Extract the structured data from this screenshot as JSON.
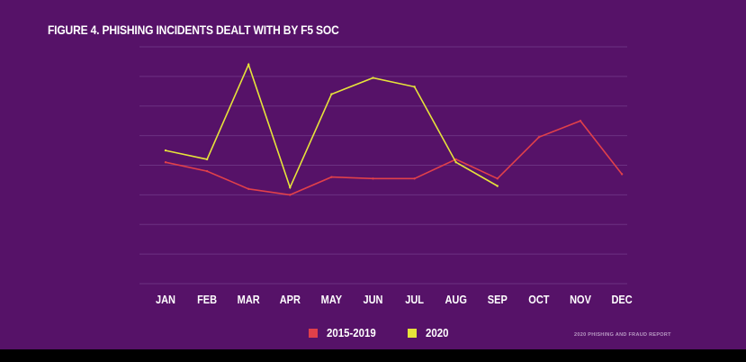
{
  "figure": {
    "title": "FIGURE 4. PHISHING INCIDENTS DEALT WITH BY F5 SOC",
    "footer_note": "2020 PHISHING AND FRAUD REPORT"
  },
  "colors": {
    "background": "#561268",
    "gridline": "#6c3182",
    "series_2015_2019": "#e0404a",
    "series_2020": "#e6e33a",
    "text": "#ffffff"
  },
  "chart_data": {
    "type": "line",
    "title": "FIGURE 4. PHISHING INCIDENTS DEALT WITH BY F5 SOC",
    "xlabel": "",
    "ylabel": "",
    "categories": [
      "JAN",
      "FEB",
      "MAR",
      "APR",
      "MAY",
      "JUN",
      "JUL",
      "AUG",
      "SEP",
      "OCT",
      "NOV",
      "DEC"
    ],
    "ylim": [
      0,
      8
    ],
    "y_tick_labels_shown": false,
    "grid": true,
    "legend_position": "bottom",
    "series": [
      {
        "name": "2015-2019",
        "color": "#e0404a",
        "values": [
          4.1,
          3.8,
          3.2,
          3.0,
          3.6,
          3.55,
          3.55,
          4.2,
          3.55,
          4.95,
          5.5,
          3.7
        ]
      },
      {
        "name": "2020",
        "color": "#e6e33a",
        "values": [
          4.5,
          4.2,
          7.4,
          3.25,
          6.4,
          6.95,
          6.65,
          4.1,
          3.3,
          null,
          null,
          null
        ]
      }
    ]
  }
}
